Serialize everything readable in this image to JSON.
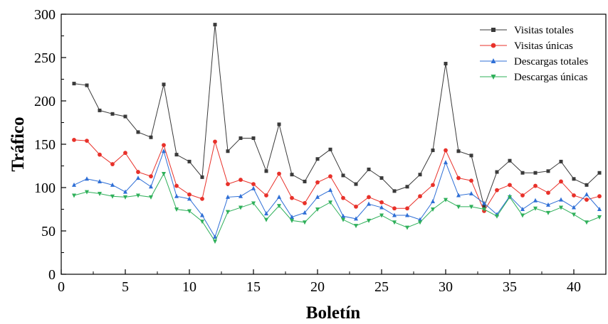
{
  "chart_data": {
    "type": "line",
    "xlabel": "Boletín",
    "ylabel": "Tráfico",
    "xlim": [
      0,
      42.5
    ],
    "ylim": [
      0,
      300
    ],
    "xticks": [
      0,
      5,
      10,
      15,
      20,
      25,
      30,
      35,
      40
    ],
    "yticks": [
      0,
      50,
      100,
      150,
      200,
      250,
      300
    ],
    "grid": false,
    "legend_position": "top-right",
    "x": [
      1,
      2,
      3,
      4,
      5,
      6,
      7,
      8,
      9,
      10,
      11,
      12,
      13,
      14,
      15,
      16,
      17,
      18,
      19,
      20,
      21,
      22,
      23,
      24,
      25,
      26,
      27,
      28,
      29,
      30,
      31,
      32,
      33,
      34,
      35,
      36,
      37,
      38,
      39,
      40,
      41,
      42
    ],
    "series": [
      {
        "name": "Visitas totales",
        "color": "#3a3a3a",
        "marker": "square",
        "values": [
          220,
          218,
          189,
          185,
          182,
          164,
          158,
          219,
          138,
          130,
          112,
          288,
          142,
          157,
          157,
          119,
          173,
          115,
          107,
          133,
          144,
          114,
          104,
          121,
          111,
          96,
          101,
          115,
          143,
          243,
          142,
          137,
          78,
          118,
          131,
          117,
          117,
          119,
          130,
          110,
          103,
          117
        ]
      },
      {
        "name": "Visitas únicas",
        "color": "#e8312a",
        "marker": "circle",
        "values": [
          155,
          154,
          138,
          127,
          140,
          118,
          113,
          149,
          102,
          92,
          87,
          153,
          104,
          109,
          104,
          91,
          116,
          88,
          82,
          106,
          113,
          88,
          78,
          89,
          83,
          76,
          76,
          90,
          103,
          143,
          111,
          108,
          73,
          97,
          103,
          91,
          102,
          94,
          107,
          91,
          86,
          90
        ]
      },
      {
        "name": "Descargas totales",
        "color": "#2f6fd6",
        "marker": "triangle-up",
        "values": [
          103,
          110,
          107,
          103,
          95,
          111,
          101,
          142,
          90,
          87,
          68,
          43,
          89,
          90,
          99,
          70,
          89,
          66,
          71,
          89,
          97,
          67,
          64,
          81,
          77,
          68,
          68,
          63,
          84,
          129,
          91,
          93,
          82,
          69,
          90,
          75,
          85,
          80,
          86,
          77,
          92,
          75
        ]
      },
      {
        "name": "Descargas únicas",
        "color": "#2fb05a",
        "marker": "triangle-down",
        "values": [
          91,
          95,
          93,
          90,
          89,
          91,
          89,
          116,
          75,
          73,
          61,
          38,
          72,
          77,
          82,
          63,
          79,
          62,
          60,
          75,
          83,
          63,
          56,
          62,
          68,
          60,
          54,
          60,
          75,
          86,
          78,
          78,
          75,
          67,
          89,
          68,
          76,
          71,
          77,
          69,
          60,
          66
        ]
      }
    ]
  }
}
